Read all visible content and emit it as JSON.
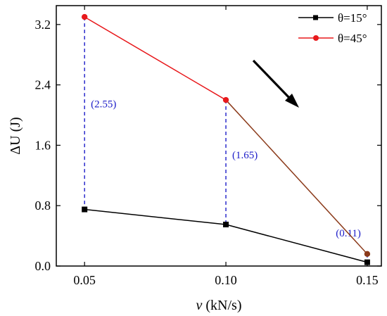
{
  "chart_data": {
    "type": "line",
    "x": [
      0.05,
      0.1,
      0.15
    ],
    "series": [
      {
        "name": "θ=15°",
        "values": [
          0.75,
          0.55,
          0.05
        ],
        "color": "#000000",
        "marker": "square"
      },
      {
        "name": "θ=45°",
        "values": [
          3.3,
          2.2,
          0.16
        ],
        "color": "#e8191c",
        "marker": "circle"
      }
    ],
    "xlabel_var": "v",
    "xlabel_unit": " (kN/s)",
    "ylabel": "ΔU (J)",
    "xlim": [
      0.04,
      0.155
    ],
    "ylim": [
      0,
      3.45
    ],
    "xticks": [
      0.05,
      0.1,
      0.15
    ],
    "xtick_labels": [
      "0.05",
      "0.10",
      "0.15"
    ],
    "yticks": [
      0.0,
      0.8,
      1.6,
      2.4,
      3.2
    ],
    "ytick_labels": [
      "0.0",
      "0.8",
      "1.6",
      "2.4",
      "3.2"
    ],
    "annotations": [
      {
        "text": "(2.55)",
        "x": 0.05,
        "y_low": 0.75,
        "y_high": 3.3
      },
      {
        "text": "(1.65)",
        "x": 0.1,
        "y_low": 0.55,
        "y_high": 2.2
      },
      {
        "text": "(0.11)",
        "x": 0.15,
        "y_low": 0.05,
        "y_high": 0.16
      }
    ],
    "annotation_color": "#1c1cc8",
    "last_segment_color": "#8b3a1a",
    "arrow": "downward trend arrow",
    "grid": false,
    "legend_position": "top-right"
  }
}
